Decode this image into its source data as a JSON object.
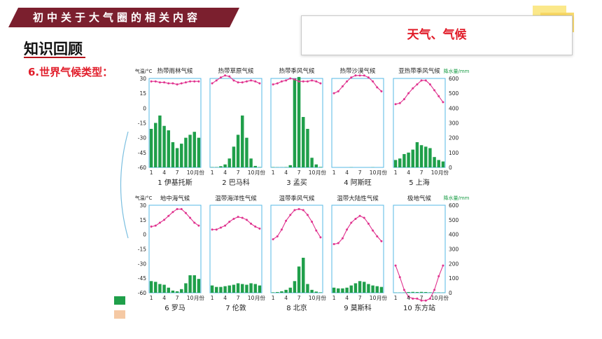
{
  "header": {
    "banner": "初中关于大气圈的相关内容"
  },
  "section_title": "知识回顾",
  "subtitle": "6.世界气候类型：",
  "topic": "天气、气候",
  "colors": {
    "banner": "#7b1f2e",
    "accent": "#e11d2a",
    "bar": "#1f9f4a",
    "line": "#e0338f",
    "frame": "#56b9e6"
  },
  "chart_data": {
    "type": "bar+line",
    "axis_left_label": "气温/°C",
    "axis_right_label": "降水量/mm",
    "temp_ticks": [
      "30",
      "15",
      "0",
      "-15",
      "-30",
      "-45",
      "-60"
    ],
    "precip_ticks": [
      "600",
      "500",
      "400",
      "300",
      "200",
      "100",
      "0"
    ],
    "temp_range": [
      -60,
      30
    ],
    "precip_range": [
      0,
      600
    ],
    "month_ticks": [
      "1",
      "4",
      "7",
      "10",
      "月份"
    ],
    "panels": [
      {
        "name": "热带雨林气候",
        "caption": "1  伊基托斯",
        "temp": [
          27,
          27,
          26,
          26,
          25,
          25,
          24,
          25,
          26,
          27,
          27,
          27
        ],
        "precip": [
          260,
          300,
          350,
          280,
          250,
          170,
          130,
          160,
          200,
          220,
          240,
          200
        ]
      },
      {
        "name": "热带草原气候",
        "caption": "2  巴马科",
        "temp": [
          25,
          28,
          31,
          33,
          32,
          28,
          26,
          26,
          27,
          28,
          27,
          25
        ],
        "precip": [
          2,
          2,
          8,
          20,
          60,
          140,
          220,
          350,
          200,
          60,
          10,
          2
        ]
      },
      {
        "name": "热带季风气候",
        "caption": "3  孟买",
        "temp": [
          24,
          25,
          27,
          28,
          30,
          29,
          27,
          27,
          27,
          28,
          27,
          25
        ],
        "precip": [
          2,
          1,
          1,
          2,
          15,
          600,
          610,
          340,
          260,
          65,
          20,
          3
        ]
      },
      {
        "name": "热带沙漠气候",
        "caption": "4  阿斯旺",
        "temp": [
          15,
          17,
          22,
          27,
          31,
          33,
          33,
          33,
          31,
          27,
          21,
          17
        ],
        "precip": [
          0,
          0,
          0,
          0,
          1,
          0,
          0,
          0,
          0,
          1,
          0,
          0
        ]
      },
      {
        "name": "亚热带季风气候",
        "caption": "5  上海",
        "temp": [
          4,
          5,
          9,
          15,
          20,
          24,
          28,
          28,
          24,
          18,
          12,
          6
        ],
        "precip": [
          50,
          60,
          90,
          100,
          120,
          170,
          150,
          140,
          130,
          70,
          50,
          40
        ]
      },
      {
        "name": "地中海气候",
        "caption": "6  罗马",
        "temp": [
          8,
          9,
          12,
          15,
          19,
          23,
          26,
          26,
          22,
          17,
          12,
          9
        ],
        "precip": [
          80,
          75,
          60,
          55,
          35,
          15,
          10,
          25,
          65,
          120,
          120,
          95
        ]
      },
      {
        "name": "温带海洋性气候",
        "caption": "7  伦敦",
        "temp": [
          5,
          5,
          7,
          9,
          13,
          16,
          18,
          17,
          15,
          11,
          8,
          6
        ],
        "precip": [
          50,
          40,
          40,
          45,
          50,
          55,
          65,
          60,
          55,
          65,
          60,
          50
        ]
      },
      {
        "name": "温带季风气候",
        "caption": "8  北京",
        "temp": [
          -5,
          -2,
          5,
          14,
          20,
          25,
          26,
          25,
          20,
          13,
          4,
          -3
        ],
        "precip": [
          3,
          5,
          10,
          20,
          35,
          80,
          180,
          240,
          60,
          20,
          8,
          3
        ]
      },
      {
        "name": "温带大陆性气候",
        "caption": "9  莫斯科",
        "temp": [
          -10,
          -9,
          -4,
          5,
          12,
          16,
          19,
          17,
          11,
          4,
          -2,
          -7
        ],
        "precip": [
          35,
          30,
          30,
          35,
          50,
          65,
          80,
          75,
          60,
          50,
          45,
          40
        ]
      },
      {
        "name": "极地气候",
        "caption": "10  东方站",
        "temp": [
          -32,
          -44,
          -57,
          -64,
          -66,
          -66,
          -68,
          -68,
          -66,
          -57,
          -43,
          -32
        ],
        "precip": [
          1,
          1,
          2,
          5,
          6,
          5,
          6,
          5,
          3,
          2,
          2,
          1
        ]
      }
    ]
  }
}
